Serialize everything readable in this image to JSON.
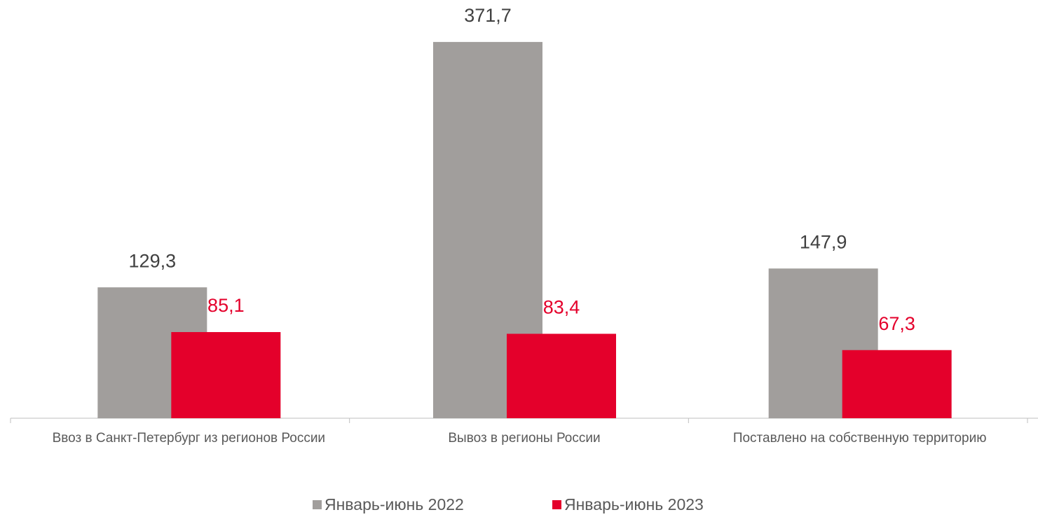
{
  "chart_data": {
    "type": "bar",
    "categories": [
      "Ввоз в Санкт-Петербург из регионов России",
      "Вывоз в регионы России",
      "Поставлено на собственную территорию"
    ],
    "series": [
      {
        "name": "Январь-июнь 2022",
        "color": "#a19e9c",
        "label_color": "#404040",
        "values": [
          129.3,
          371.7,
          147.9
        ],
        "value_labels": [
          "129,3",
          "371,7",
          "147,9"
        ]
      },
      {
        "name": "Январь-июнь 2023",
        "color": "#e4002b",
        "label_color": "#e4002b",
        "values": [
          85.1,
          83.4,
          67.3
        ],
        "value_labels": [
          "85,1",
          "83,4",
          "67,3"
        ]
      }
    ],
    "ylim": [
      0,
      400
    ],
    "legend": "bottom"
  }
}
